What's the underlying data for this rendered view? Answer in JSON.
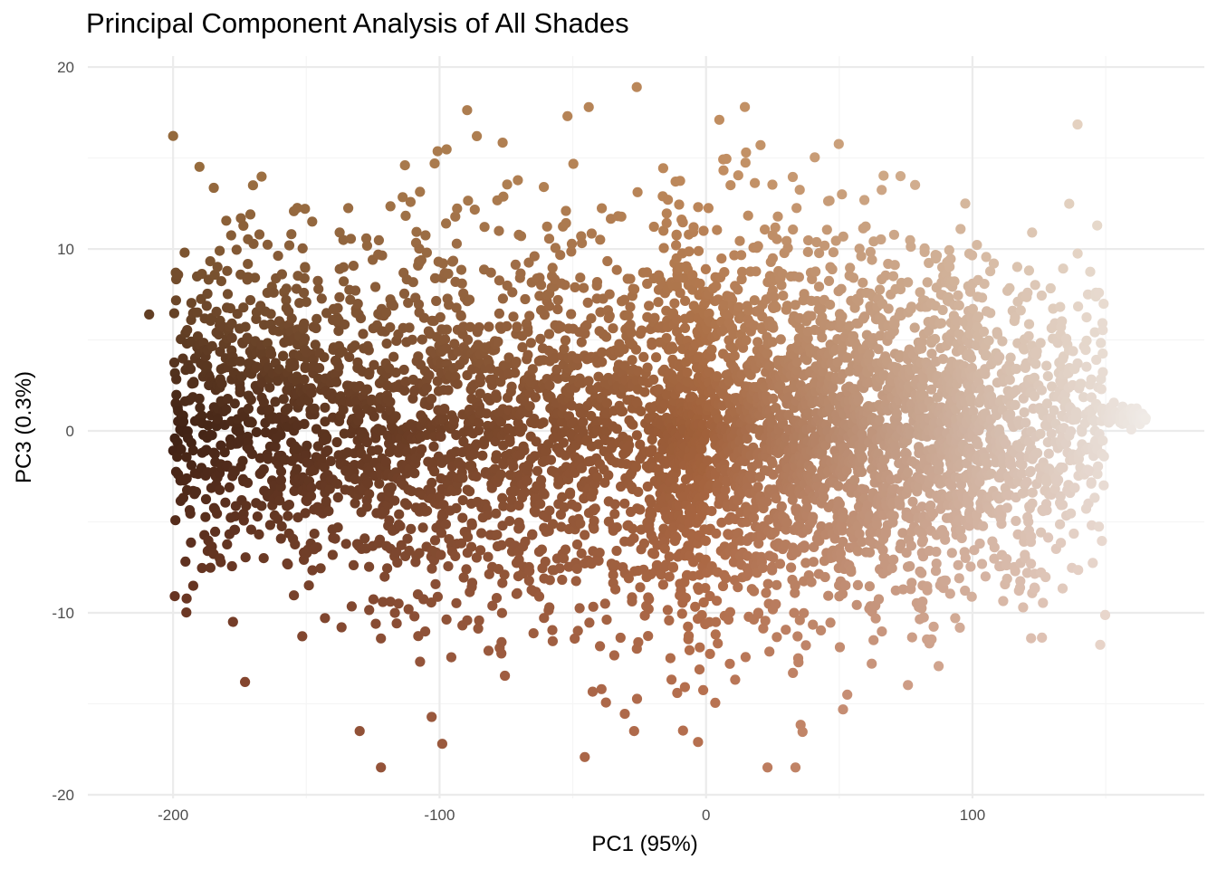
{
  "chart_data": {
    "type": "scatter",
    "title": "Principal Component Analysis of All Shades",
    "xlabel": "PC1 (95%)",
    "ylabel": "PC3 (0.3%)",
    "xlim": [
      -232,
      187
    ],
    "ylim": [
      -20.2,
      20.6
    ],
    "x_ticks": [
      -200,
      -100,
      0,
      100
    ],
    "x_tick_labels": [
      "-200",
      "-100",
      "0",
      "100"
    ],
    "y_ticks": [
      -20,
      -10,
      0,
      10,
      20
    ],
    "y_tick_labels": [
      "-20",
      "-10",
      "0",
      "10",
      "20"
    ],
    "x_minor": [
      -150,
      -50,
      50,
      150
    ],
    "y_minor": [
      -15,
      -5,
      5,
      15
    ],
    "grid": true,
    "legend": "none",
    "point_color_note": "points colored by their own shade: dark brown at low PC1 to pale cream at high PC1; PC3 positive tends to golden, negative tends to reddish",
    "colors": {
      "grid_major": "#ebebeb",
      "grid_minor": "#f5f5f5",
      "dark_end": "#3a1e12",
      "light_end": "#f2f0ee",
      "warm_top": "#d9a25a",
      "red_bottom": "#b85a3c"
    },
    "notable_points": [
      {
        "x": -209,
        "y": 6.4
      },
      {
        "x": -199,
        "y": 8.7
      },
      {
        "x": -170,
        "y": 13.5
      },
      {
        "x": -171,
        "y": 11.9
      },
      {
        "x": -187,
        "y": -6.6
      },
      {
        "x": -173,
        "y": -13.8
      },
      {
        "x": -122,
        "y": -18.5
      },
      {
        "x": -130,
        "y": -16.5
      },
      {
        "x": -99,
        "y": -17.2
      },
      {
        "x": -113,
        "y": 14.6
      },
      {
        "x": -86,
        "y": 16.2
      },
      {
        "x": -52,
        "y": 17.3
      },
      {
        "x": -44,
        "y": 17.8
      },
      {
        "x": -26,
        "y": 18.9
      },
      {
        "x": 5,
        "y": 17.1
      },
      {
        "x": 15,
        "y": 15.3
      },
      {
        "x": 51,
        "y": 13.0
      },
      {
        "x": 73,
        "y": 14.0
      },
      {
        "x": 108,
        "y": 9.2
      },
      {
        "x": 117,
        "y": 7.1
      },
      {
        "x": -27,
        "y": -16.5
      },
      {
        "x": -3,
        "y": -17.1
      },
      {
        "x": 53,
        "y": -14.5
      },
      {
        "x": 122,
        "y": -11.4
      },
      {
        "x": 119,
        "y": -9.7
      },
      {
        "x": 150,
        "y": 0.8
      },
      {
        "x": 160,
        "y": 0.9
      },
      {
        "x": 165,
        "y": 0.7
      }
    ]
  }
}
